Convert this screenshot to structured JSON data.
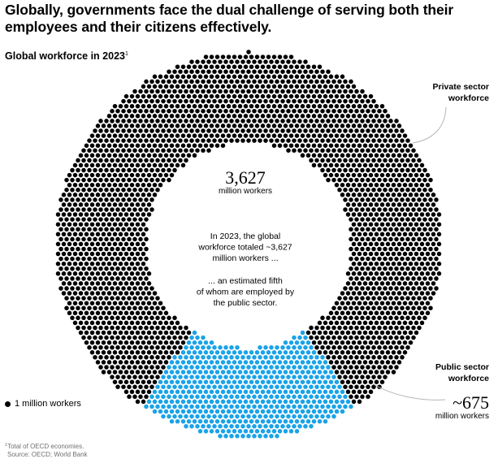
{
  "title": "Globally, governments face the dual challenge of serving both their employees and their citizens effectively.",
  "subtitle": "Global workforce in 2023",
  "subtitle_footnote_mark": "1",
  "center": {
    "total_value": "3,627",
    "total_unit": "million workers",
    "text_1": "In 2023, the global workforce totaled ~3,627 million workers ...",
    "text_2": "... an estimated fifth of whom are employed by the public sector."
  },
  "labels": {
    "private": "Private sector workforce",
    "public": "Public sector workforce",
    "public_value": "~675",
    "public_unit": "million workers"
  },
  "legend": {
    "label": "1 million workers"
  },
  "footnote": {
    "mark": "1",
    "text": "Total of OECD economies.",
    "source": "Source: OECD; World Bank"
  },
  "colors": {
    "private": "#000000",
    "public": "#1aa3e8",
    "leader": "#b4b4b4"
  },
  "chart_data": {
    "type": "pie",
    "style": "dot-donut",
    "total": 3627,
    "unit": "million workers",
    "slices": [
      {
        "name": "Private sector workforce",
        "value": 2952,
        "color": "#000000"
      },
      {
        "name": "Public sector workforce",
        "value": 675,
        "color": "#1aa3e8"
      }
    ]
  }
}
